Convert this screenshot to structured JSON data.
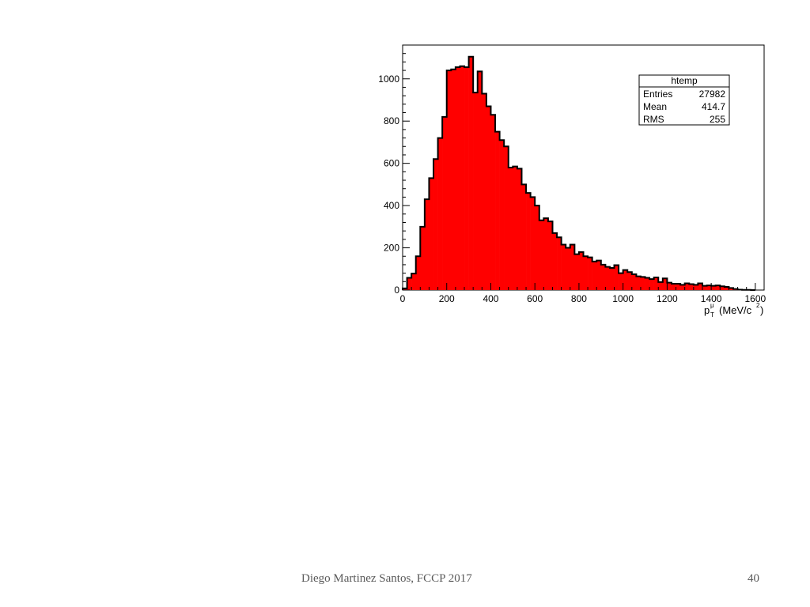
{
  "slide": {
    "footer": "Diego Martinez Santos, FCCP 2017",
    "page_number": "40"
  },
  "chart_data": {
    "type": "bar",
    "title": "",
    "xlabel": "p_T^μ (MeV/c^2)",
    "xlabel_parts": {
      "p": "p",
      "sub": "T",
      "sup": "μ",
      "unit": "(MeV/c",
      "unit_sup": "2",
      "close": ")"
    },
    "ylabel": "",
    "xlim": [
      0,
      1640
    ],
    "ylim": [
      0,
      1160
    ],
    "xticks": [
      0,
      200,
      400,
      600,
      800,
      1000,
      1200,
      1400,
      1600
    ],
    "yticks": [
      0,
      200,
      400,
      600,
      800,
      1000
    ],
    "bin_width": 20,
    "x": [
      0,
      20,
      40,
      60,
      80,
      100,
      120,
      140,
      160,
      180,
      200,
      220,
      240,
      260,
      280,
      300,
      320,
      340,
      360,
      380,
      400,
      420,
      440,
      460,
      480,
      500,
      520,
      540,
      560,
      580,
      600,
      620,
      640,
      660,
      680,
      700,
      720,
      740,
      760,
      780,
      800,
      820,
      840,
      860,
      880,
      900,
      920,
      940,
      960,
      980,
      1000,
      1020,
      1040,
      1060,
      1080,
      1100,
      1120,
      1140,
      1160,
      1180,
      1200,
      1220,
      1240,
      1260,
      1280,
      1300,
      1320,
      1340,
      1360,
      1380,
      1400,
      1420,
      1440,
      1460,
      1480,
      1500,
      1520,
      1540,
      1560,
      1580
    ],
    "values": [
      8,
      58,
      78,
      160,
      300,
      430,
      530,
      620,
      720,
      820,
      1040,
      1045,
      1055,
      1060,
      1055,
      1105,
      935,
      1035,
      930,
      870,
      830,
      750,
      710,
      680,
      580,
      585,
      575,
      500,
      460,
      440,
      400,
      330,
      340,
      325,
      270,
      250,
      215,
      200,
      215,
      170,
      180,
      160,
      155,
      135,
      140,
      120,
      110,
      105,
      118,
      80,
      95,
      85,
      75,
      65,
      62,
      58,
      52,
      60,
      38,
      55,
      35,
      30,
      30,
      25,
      32,
      28,
      25,
      32,
      20,
      22,
      20,
      22,
      18,
      15,
      10,
      5,
      2,
      1,
      1,
      0
    ],
    "fill_color": "#ff0000",
    "line_color": "#000000",
    "stats_box": {
      "title": "htemp",
      "rows": [
        {
          "label": "Entries",
          "value": "27982"
        },
        {
          "label": "Mean",
          "value": "414.7"
        },
        {
          "label": "RMS",
          "value": "255"
        }
      ],
      "placement": "top-right"
    }
  }
}
